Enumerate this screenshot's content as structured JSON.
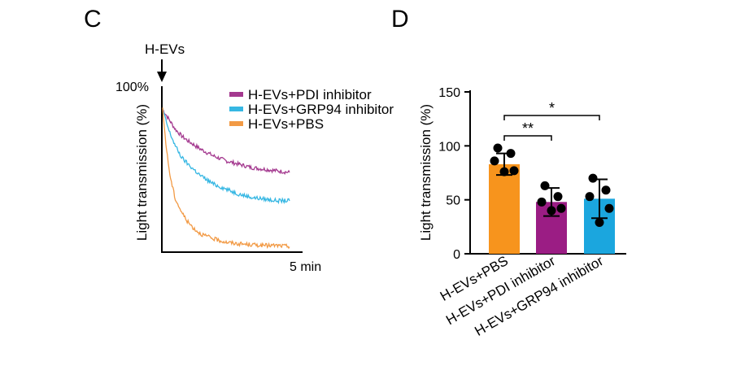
{
  "chart_data": [
    {
      "panel": "C",
      "type": "line",
      "ylabel": "Light transmission (%)",
      "ytick_top": "100%",
      "xtick_end": "5 min",
      "annotation": "H-EVs",
      "x_unit": "min",
      "x_range": [
        0,
        5
      ],
      "y_range": [
        0,
        100
      ],
      "grid": false,
      "legend_position": "top-right",
      "series": [
        {
          "name": "H-EVs+PDI inhibitor",
          "color": "#a4398f",
          "x": [
            0,
            0.25,
            0.5,
            0.75,
            1.0,
            1.5,
            2.0,
            2.5,
            3.0,
            3.5,
            4.0,
            4.5,
            5.0
          ],
          "values": [
            86,
            80,
            74,
            70,
            67,
            62,
            58,
            55,
            53,
            51,
            50,
            49,
            48
          ]
        },
        {
          "name": "H-EVs+GRP94 inhibitor",
          "color": "#36b7e3",
          "x": [
            0,
            0.25,
            0.5,
            0.75,
            1.0,
            1.5,
            2.0,
            2.5,
            3.0,
            3.5,
            4.0,
            4.5,
            5.0
          ],
          "values": [
            86,
            73,
            64,
            57,
            53,
            46,
            41,
            38,
            35,
            33,
            32,
            31,
            31
          ]
        },
        {
          "name": "H-EVs+PBS",
          "color": "#f29a45",
          "x": [
            0,
            0.15,
            0.3,
            0.5,
            0.75,
            1.0,
            1.25,
            1.5,
            2.0,
            2.5,
            3.0,
            3.5,
            4.0,
            4.5,
            5.0
          ],
          "values": [
            86,
            62,
            45,
            32,
            24,
            18,
            14,
            11,
            8,
            6,
            5,
            4.5,
            4,
            4,
            3.5
          ]
        }
      ]
    },
    {
      "panel": "D",
      "type": "bar",
      "ylabel": "Light transmission (%)",
      "ylim": [
        0,
        150
      ],
      "yticks": [
        0,
        50,
        100,
        150
      ],
      "grid": false,
      "categories": [
        "H-EVs+PBS",
        "H-EVs+PDI inhibitor",
        "H-EVs+GRP94 inhibitor"
      ],
      "colors": [
        "#f7941d",
        "#9b1d84",
        "#1ba6de"
      ],
      "values": [
        83,
        48,
        51
      ],
      "sd": [
        10,
        13,
        18
      ],
      "points": [
        [
          98,
          93,
          86,
          77,
          76
        ],
        [
          63,
          53,
          48,
          42,
          40
        ],
        [
          70,
          59,
          53,
          42,
          29
        ]
      ],
      "significance": [
        {
          "from": 0,
          "to": 1,
          "label": "**"
        },
        {
          "from": 0,
          "to": 2,
          "label": "*"
        }
      ]
    }
  ]
}
